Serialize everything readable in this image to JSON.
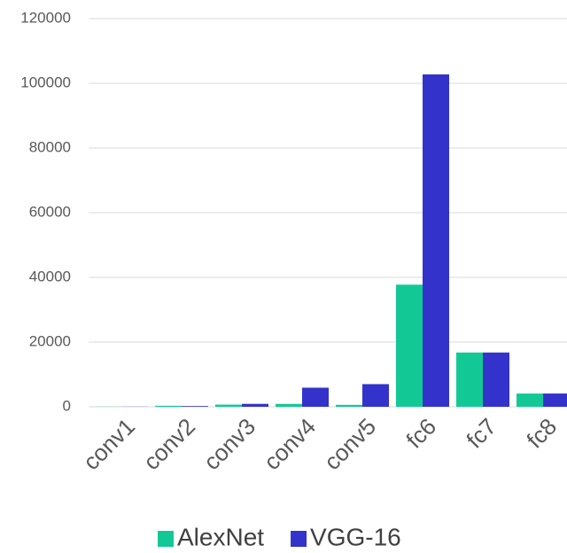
{
  "chart_data": {
    "type": "bar",
    "categories": [
      "conv1",
      "conv2",
      "conv3",
      "conv4",
      "conv5",
      "fc6",
      "fc7",
      "fc8"
    ],
    "series": [
      {
        "name": "AlexNet",
        "color": "#12c995",
        "values": [
          35,
          307,
          664,
          885,
          590,
          37749,
          16777,
          4096
        ]
      },
      {
        "name": "VGG-16",
        "color": "#3333cc",
        "values": [
          39,
          221,
          900,
          5900,
          7000,
          102760,
          16777,
          4096
        ]
      }
    ],
    "ylim": [
      0,
      120000
    ],
    "yticks": [
      0,
      20000,
      40000,
      60000,
      80000,
      100000,
      120000
    ],
    "grid": true,
    "legend": "bottom"
  }
}
